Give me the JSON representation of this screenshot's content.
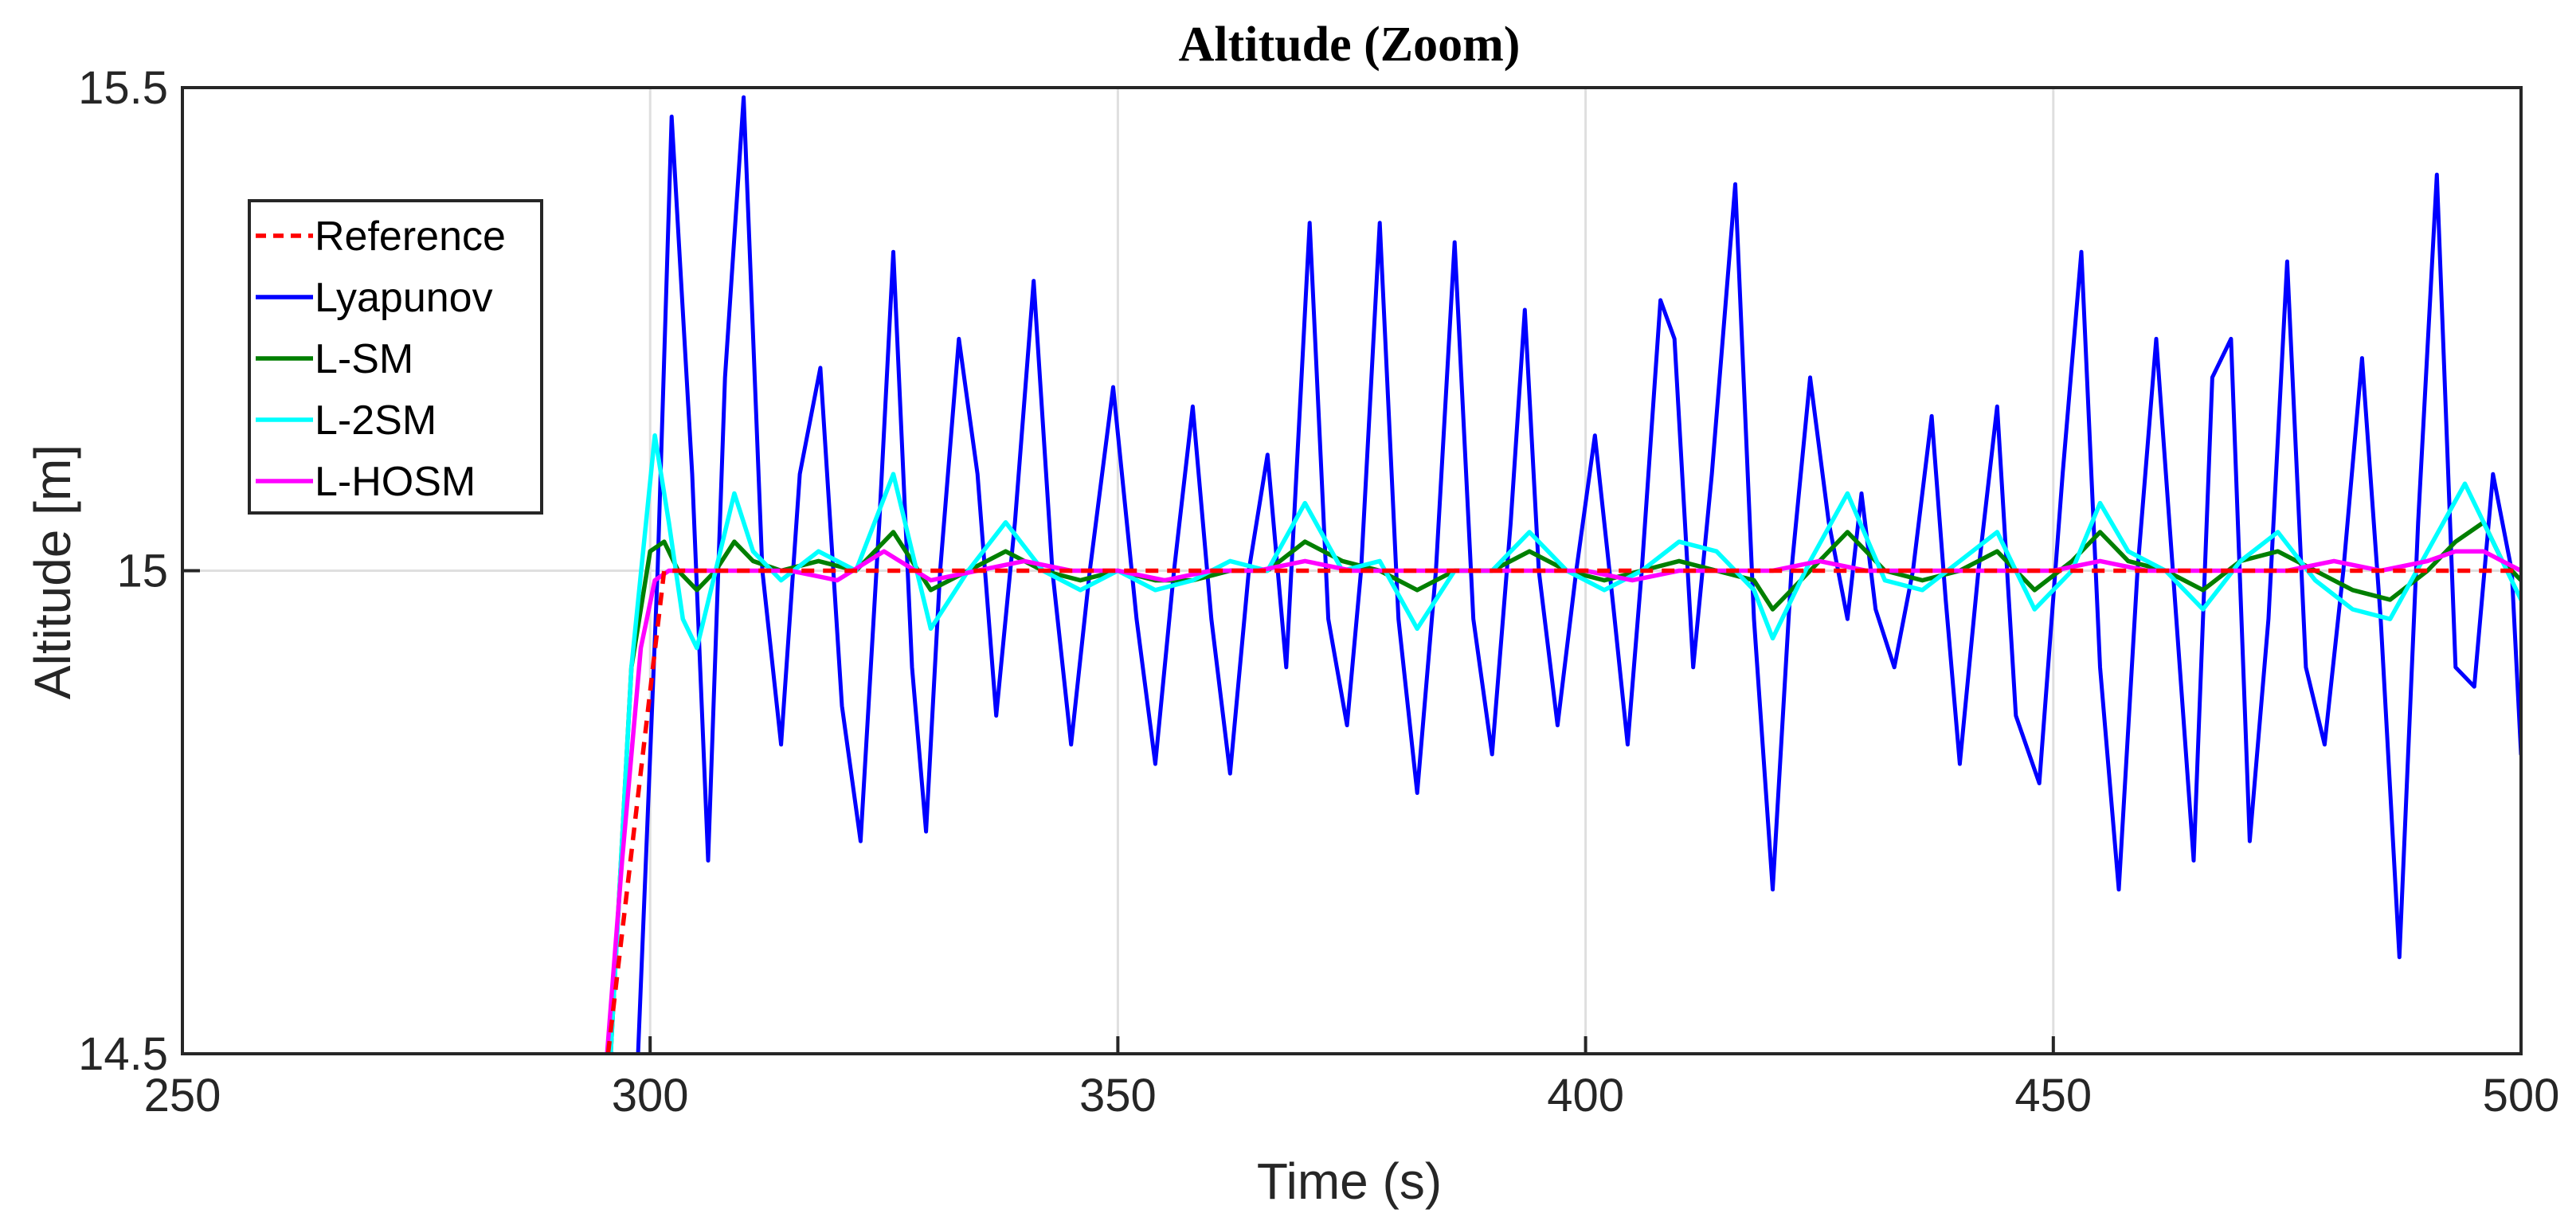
{
  "chart_data": {
    "type": "line",
    "title": "Altitude (Zoom)",
    "xlabel": "Time (s)",
    "ylabel": "Altitude [m]",
    "xlim": [
      250,
      500
    ],
    "ylim": [
      14.5,
      15.5
    ],
    "xticks": [
      250,
      300,
      350,
      400,
      450,
      500
    ],
    "xtick_labels": [
      "250",
      "300",
      "350",
      "400",
      "450",
      "500"
    ],
    "yticks": [
      14.5,
      15,
      15.5
    ],
    "ytick_labels": [
      "14.5",
      "15",
      "15.5"
    ],
    "grid": true,
    "legend_position": "top-left",
    "series": [
      {
        "name": "Reference",
        "color": "#ff0000",
        "style": "dashed",
        "x": [
          295.5,
          301.5,
          500
        ],
        "y": [
          14.5,
          15.0,
          15.0
        ]
      },
      {
        "name": "Lyapunov",
        "color": "#0000ff",
        "style": "solid",
        "x": [
          295.2,
          296,
          298.5,
          300.8,
          302.3,
          304.5,
          306.2,
          308,
          310,
          312,
          314,
          316,
          318.2,
          320.5,
          322.5,
          324.5,
          326,
          328,
          329.5,
          331,
          333,
          335,
          337,
          339,
          341,
          343,
          345,
          347,
          349.5,
          352,
          354,
          356,
          358,
          360,
          362,
          364,
          366,
          368,
          370.5,
          372.5,
          374.5,
          376,
          378,
          380,
          382,
          384,
          386,
          388,
          390,
          392,
          393.5,
          395,
          397,
          399,
          401,
          403,
          404.5,
          406,
          408,
          409.5,
          411.5,
          413.5,
          416,
          418,
          420,
          422,
          424,
          426,
          428,
          429.5,
          431,
          433,
          435,
          437,
          438.5,
          440,
          442,
          444,
          446,
          448.5,
          451,
          453,
          455,
          457,
          459,
          461,
          463,
          465,
          467,
          469,
          471,
          473,
          475,
          477,
          479,
          481,
          483,
          485,
          487,
          489,
          491,
          493,
          495,
          497,
          499,
          500
        ],
        "y": [
          14.45,
          14.5,
          14.45,
          15.0,
          15.47,
          15.1,
          14.7,
          15.2,
          15.49,
          15.0,
          14.82,
          15.1,
          15.21,
          14.86,
          14.72,
          15.05,
          15.33,
          14.9,
          14.73,
          15.0,
          15.24,
          15.1,
          14.85,
          15.05,
          15.3,
          15.0,
          14.82,
          15.0,
          15.19,
          14.95,
          14.8,
          15.0,
          15.17,
          14.95,
          14.79,
          15.0,
          15.12,
          14.9,
          15.36,
          14.95,
          14.84,
          15.0,
          15.36,
          14.95,
          14.77,
          15.0,
          15.34,
          14.95,
          14.81,
          15.05,
          15.27,
          15.0,
          14.84,
          15.0,
          15.14,
          14.96,
          14.82,
          15.0,
          15.28,
          15.24,
          14.9,
          15.1,
          15.4,
          14.95,
          14.67,
          15.0,
          15.2,
          15.05,
          14.95,
          15.08,
          14.96,
          14.9,
          15.0,
          15.16,
          14.97,
          14.8,
          15.0,
          15.17,
          14.85,
          14.78,
          15.1,
          15.33,
          14.9,
          14.67,
          15.0,
          15.24,
          14.97,
          14.7,
          15.2,
          15.24,
          14.72,
          14.95,
          15.32,
          14.9,
          14.82,
          15.0,
          15.22,
          14.95,
          14.6,
          15.05,
          15.41,
          14.9,
          14.88,
          15.1,
          15.0,
          14.81
        ]
      },
      {
        "name": "L-SM",
        "color": "#007f00",
        "style": "solid",
        "x": [
          295.5,
          298,
          300,
          301.5,
          303,
          305,
          307,
          309,
          311,
          314,
          318,
          322,
          326,
          330,
          334,
          338,
          342,
          346,
          350,
          354,
          358,
          362,
          366,
          370,
          374,
          378,
          382,
          386,
          390,
          394,
          398,
          402,
          406,
          410,
          414,
          418,
          420,
          424,
          428,
          432,
          436,
          440,
          444,
          448,
          452,
          455,
          458,
          462,
          466,
          470,
          474,
          478,
          482,
          486,
          490,
          493,
          496,
          498,
          500
        ],
        "y": [
          14.45,
          14.9,
          15.02,
          15.03,
          15.0,
          14.98,
          15.0,
          15.03,
          15.01,
          15.0,
          15.01,
          15.0,
          15.04,
          14.98,
          15.0,
          15.02,
          15.0,
          14.99,
          15.0,
          14.99,
          14.99,
          15.0,
          15.0,
          15.03,
          15.01,
          15.0,
          14.98,
          15.0,
          15.0,
          15.02,
          15.0,
          14.99,
          15.0,
          15.01,
          15.0,
          14.99,
          14.96,
          15.0,
          15.04,
          15.0,
          14.99,
          15.0,
          15.02,
          14.98,
          15.01,
          15.04,
          15.01,
          15.0,
          14.98,
          15.01,
          15.02,
          15.0,
          14.98,
          14.97,
          15.0,
          15.03,
          15.05,
          15.01,
          14.99
        ]
      },
      {
        "name": "L-2SM",
        "color": "#00ffff",
        "style": "solid",
        "x": [
          295.5,
          298,
          300.5,
          302,
          303.5,
          305,
          307,
          309,
          311,
          314,
          318,
          322,
          326,
          330,
          334,
          338,
          342,
          346,
          350,
          354,
          358,
          362,
          366,
          370,
          374,
          378,
          382,
          386,
          390,
          394,
          398,
          402,
          406,
          410,
          414,
          418,
          420,
          424,
          428,
          432,
          436,
          440,
          444,
          448,
          452,
          455,
          458,
          462,
          466,
          470,
          474,
          478,
          482,
          486,
          490,
          494,
          496,
          498,
          500
        ],
        "y": [
          14.45,
          14.9,
          15.14,
          15.05,
          14.95,
          14.92,
          15.0,
          15.08,
          15.02,
          14.99,
          15.02,
          15.0,
          15.1,
          14.94,
          15.0,
          15.05,
          15.0,
          14.98,
          15.0,
          14.98,
          14.99,
          15.01,
          15.0,
          15.07,
          15.0,
          15.01,
          14.94,
          15.0,
          15.0,
          15.04,
          15.0,
          14.98,
          15.0,
          15.03,
          15.02,
          14.98,
          14.93,
          15.01,
          15.08,
          14.99,
          14.98,
          15.01,
          15.04,
          14.96,
          15.0,
          15.07,
          15.02,
          15.0,
          14.96,
          15.01,
          15.04,
          14.99,
          14.96,
          14.95,
          15.02,
          15.09,
          15.05,
          15.01,
          14.97
        ]
      },
      {
        "name": "L-HOSM",
        "color": "#ff00ff",
        "style": "solid",
        "x": [
          295,
          297,
          299,
          300.5,
          302,
          305,
          310,
          315,
          320,
          325,
          330,
          335,
          340,
          345,
          350,
          355,
          360,
          365,
          370,
          375,
          380,
          385,
          390,
          395,
          400,
          405,
          410,
          415,
          420,
          425,
          430,
          435,
          440,
          445,
          450,
          455,
          460,
          465,
          470,
          475,
          480,
          485,
          490,
          493,
          496,
          498,
          500
        ],
        "y": [
          14.45,
          14.7,
          14.92,
          14.99,
          15.0,
          15.0,
          15.0,
          15.0,
          14.99,
          15.02,
          14.99,
          15.0,
          15.01,
          15.0,
          15.0,
          14.99,
          15.0,
          15.0,
          15.01,
          15.0,
          15.0,
          15.0,
          15.0,
          15.0,
          15.0,
          14.99,
          15.0,
          15.0,
          15.0,
          15.01,
          15.0,
          15.0,
          15.0,
          15.0,
          15.0,
          15.01,
          15.0,
          15.0,
          15.0,
          15.0,
          15.01,
          15.0,
          15.01,
          15.02,
          15.02,
          15.01,
          15.0
        ]
      }
    ]
  }
}
